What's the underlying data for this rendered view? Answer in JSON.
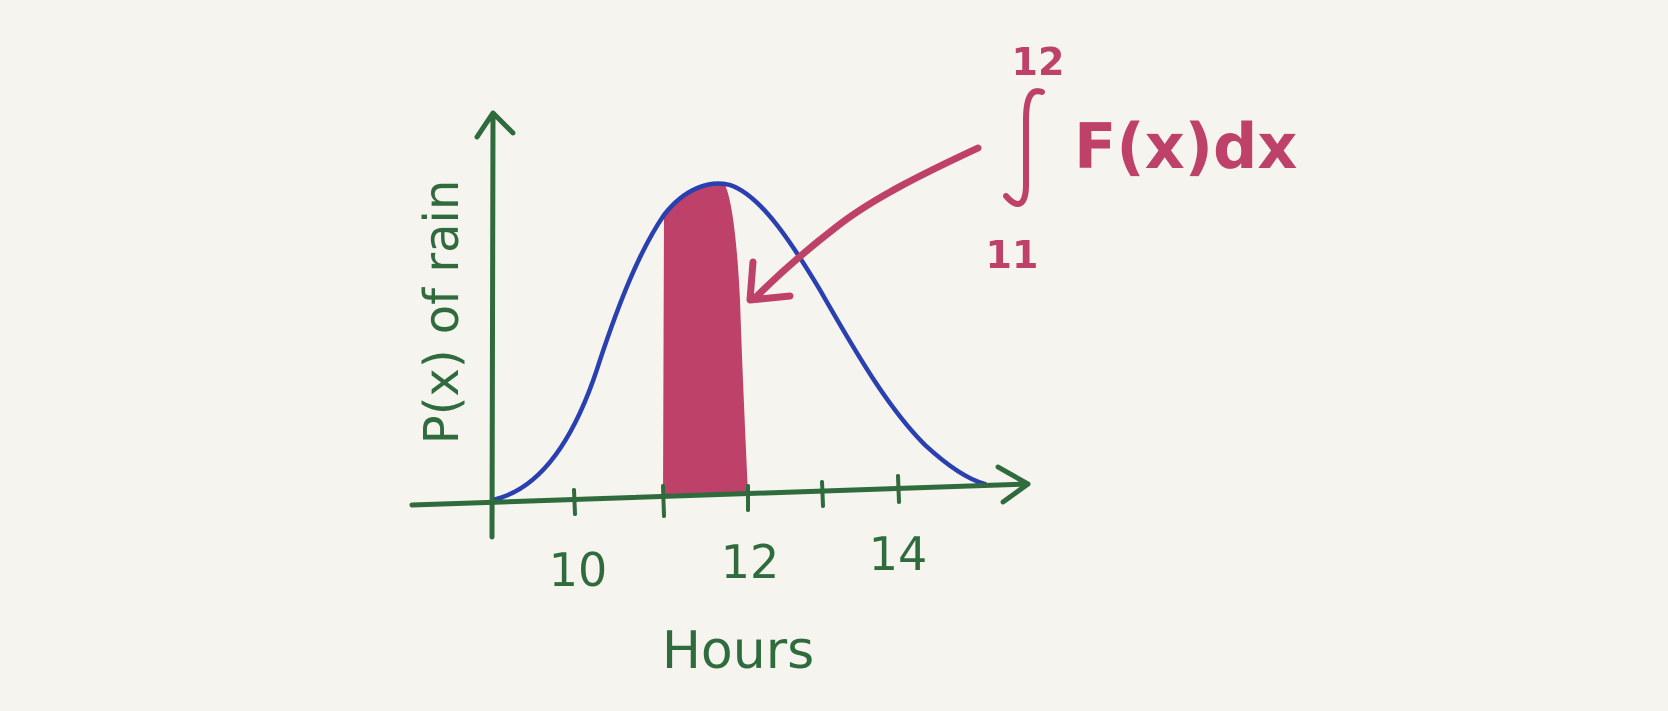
{
  "colors": {
    "paper": "#f6f4ee",
    "axes": "#2f6b3c",
    "curve": "#2a3fb0",
    "highlight": "#be416a"
  },
  "labels": {
    "y_axis": "P(x) of rain",
    "x_axis": "Hours",
    "tick_10": "10",
    "tick_12": "12",
    "tick_14": "14"
  },
  "annotation": {
    "upper_limit": "12",
    "lower_limit": "11",
    "integrand": "F(x)dx"
  },
  "shaded_interval": {
    "from_hour": 11,
    "to_hour": 12
  }
}
